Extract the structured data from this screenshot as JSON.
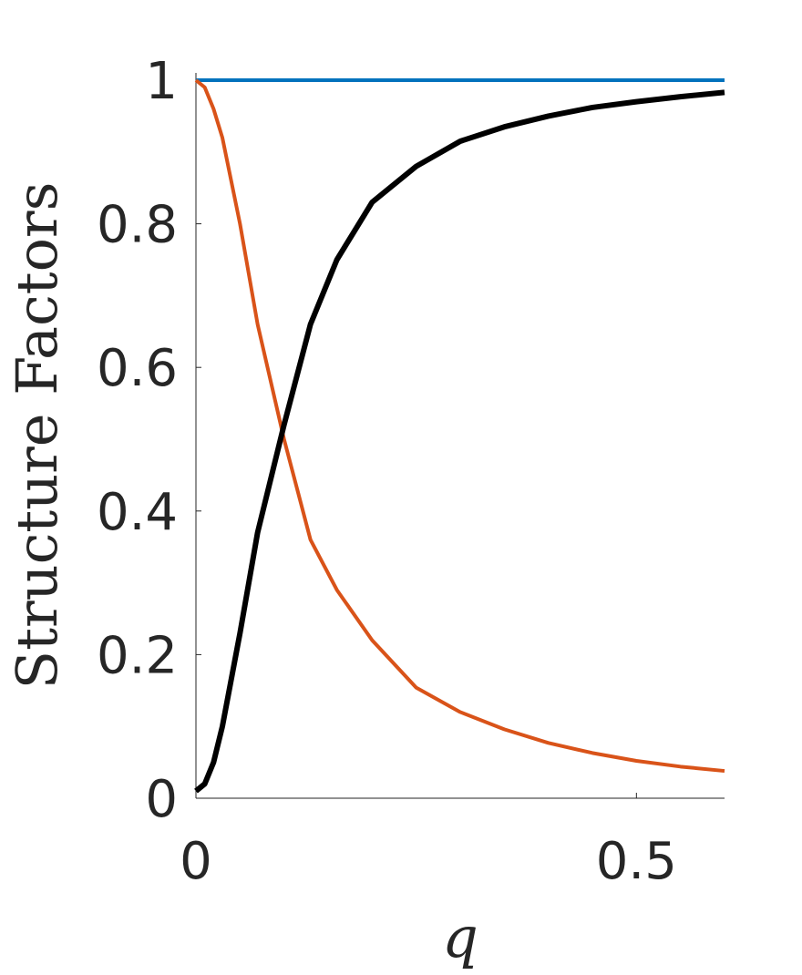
{
  "chart_data": {
    "type": "line",
    "x_label": "q",
    "y_label": "Structure Factors",
    "x": [
      0,
      0.01,
      0.02,
      0.03,
      0.05,
      0.07,
      0.1,
      0.13,
      0.16,
      0.2,
      0.25,
      0.3,
      0.35,
      0.4,
      0.45,
      0.5,
      0.55,
      0.6
    ],
    "series": [
      {
        "color": "#0072bd",
        "width": 4,
        "values": [
          1,
          1,
          1,
          1,
          1,
          1,
          1,
          1,
          1,
          1,
          1,
          1,
          1,
          1,
          1,
          1,
          1,
          1
        ]
      },
      {
        "color": "#d95319",
        "width": 4,
        "values": [
          1,
          0.99,
          0.96,
          0.92,
          0.8,
          0.66,
          0.5,
          0.36,
          0.29,
          0.22,
          0.154,
          0.12,
          0.096,
          0.077,
          0.063,
          0.052,
          0.044,
          0.038
        ]
      },
      {
        "color": "#000000",
        "width": 6,
        "values": [
          0.01,
          0.02,
          0.05,
          0.1,
          0.23,
          0.37,
          0.52,
          0.66,
          0.75,
          0.83,
          0.88,
          0.915,
          0.935,
          0.95,
          0.962,
          0.97,
          0.977,
          0.983
        ]
      }
    ],
    "xlim": [
      0,
      0.6
    ],
    "ylim": [
      0,
      1
    ],
    "xticks": [
      0,
      0.5
    ],
    "yticks": [
      0,
      0.2,
      0.4,
      0.6,
      0.8,
      1
    ]
  }
}
